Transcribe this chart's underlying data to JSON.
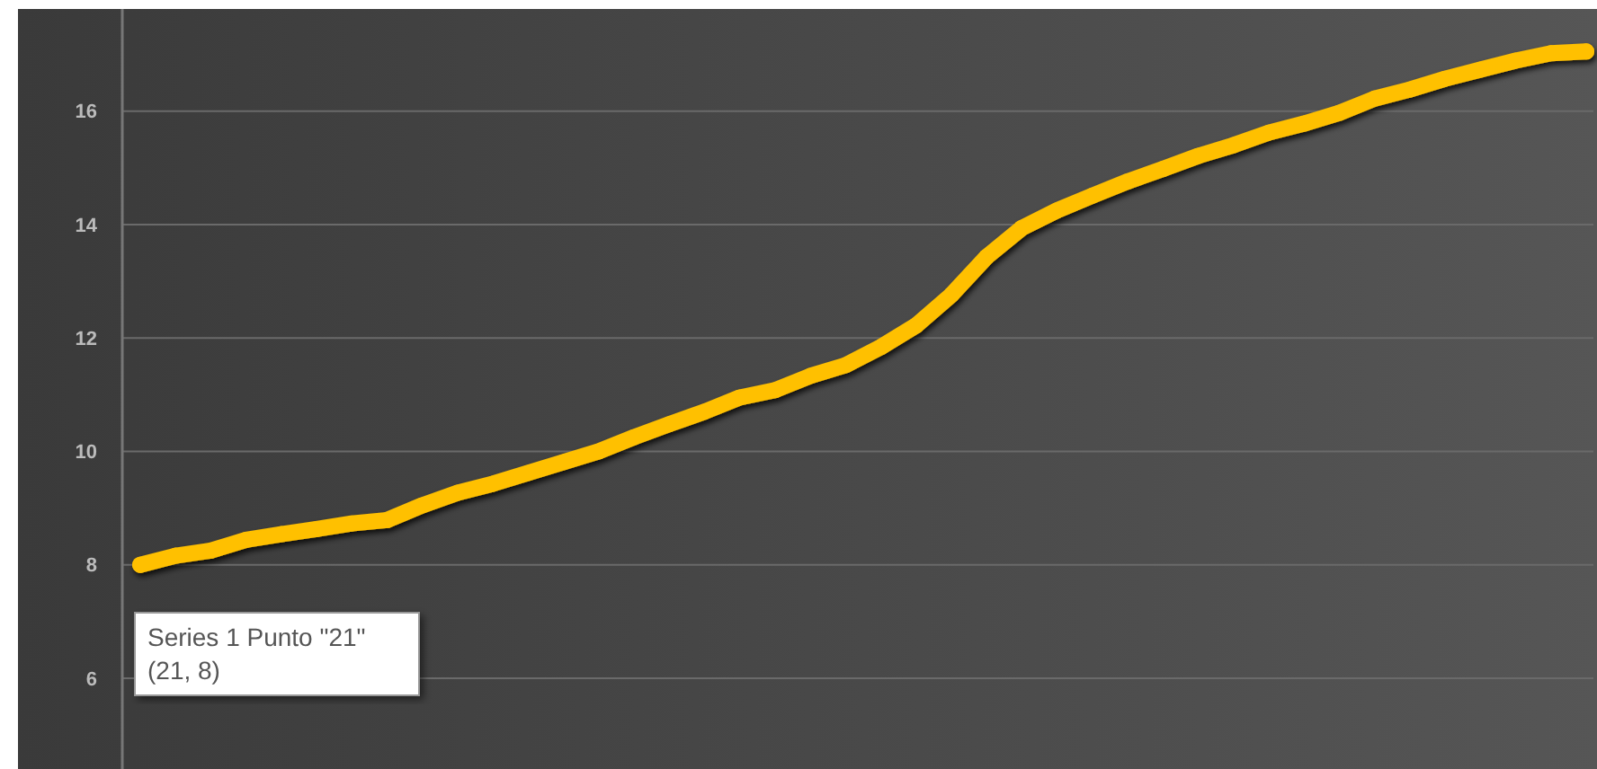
{
  "chart_data": {
    "type": "line",
    "categories": [
      null,
      null,
      null,
      null,
      null,
      null,
      null,
      null,
      null,
      null,
      null,
      null,
      null,
      null,
      null,
      null,
      null,
      null,
      null,
      null,
      null,
      null,
      null,
      null,
      null,
      null,
      null,
      null,
      null,
      null,
      null,
      null,
      null,
      null,
      null,
      null,
      null,
      null,
      null,
      null,
      null,
      null
    ],
    "series": [
      {
        "color": "#ffc000",
        "values": [
          8.0,
          8.16,
          8.25,
          8.44,
          8.54,
          8.63,
          8.73,
          8.79,
          9.05,
          9.27,
          9.43,
          9.62,
          9.81,
          10.0,
          10.25,
          10.48,
          10.7,
          10.95,
          11.08,
          11.33,
          11.52,
          11.84,
          12.22,
          12.76,
          13.43,
          13.94,
          14.25,
          14.51,
          14.76,
          14.98,
          15.21,
          15.4,
          15.62,
          15.78,
          15.97,
          16.22,
          16.38,
          16.57,
          16.73,
          16.89,
          17.02,
          17.05
        ]
      }
    ],
    "ylim": [
      4.4,
      17.8
    ],
    "yticks": [
      6,
      8,
      10,
      12,
      14,
      16
    ],
    "grid": "y",
    "marker": "circle",
    "line_style": "solid",
    "tick_labels": "y",
    "annotations": [
      "Series 1 Punto \"21\"\n(21, 8)"
    ]
  }
}
